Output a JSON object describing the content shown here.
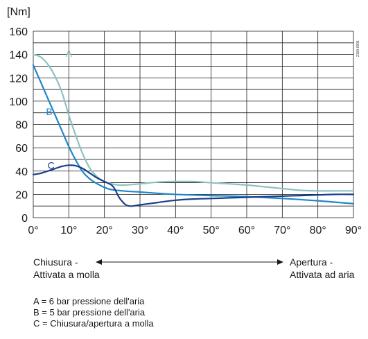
{
  "chart_data": {
    "type": "line",
    "ylabel": "[Nm]",
    "xlabel": "",
    "ylim": [
      0,
      160
    ],
    "xlim": [
      0,
      90
    ],
    "grid": true,
    "x_ticks": [
      "0°",
      "10°",
      "20°",
      "30°",
      "40°",
      "50°",
      "60°",
      "70°",
      "80°",
      "90°"
    ],
    "y_ticks": [
      "0",
      "20",
      "40",
      "60",
      "80",
      "100",
      "120",
      "140",
      "160"
    ],
    "figure_code": "2100-0001",
    "series": [
      {
        "name": "A",
        "color": "#8cc2c0",
        "points": [
          [
            0,
            140
          ],
          [
            2,
            138
          ],
          [
            4,
            132
          ],
          [
            6,
            122
          ],
          [
            8,
            108
          ],
          [
            10,
            88
          ],
          [
            12,
            70
          ],
          [
            14,
            54
          ],
          [
            16,
            42
          ],
          [
            18,
            35
          ],
          [
            20,
            31
          ],
          [
            22,
            29
          ],
          [
            24,
            28
          ],
          [
            26,
            28
          ],
          [
            30,
            29
          ],
          [
            35,
            30.5
          ],
          [
            40,
            31
          ],
          [
            45,
            31
          ],
          [
            50,
            30
          ],
          [
            55,
            29
          ],
          [
            60,
            28
          ],
          [
            65,
            26.5
          ],
          [
            70,
            25
          ],
          [
            75,
            23.5
          ],
          [
            80,
            23
          ],
          [
            85,
            23
          ],
          [
            90,
            23
          ]
        ]
      },
      {
        "name": "B",
        "color": "#1f86c9",
        "points": [
          [
            0,
            131
          ],
          [
            2,
            117
          ],
          [
            4,
            103
          ],
          [
            6,
            89
          ],
          [
            8,
            75
          ],
          [
            10,
            61
          ],
          [
            12,
            49
          ],
          [
            14,
            39
          ],
          [
            16,
            33
          ],
          [
            18,
            29
          ],
          [
            20,
            26
          ],
          [
            22,
            24
          ],
          [
            25,
            23
          ],
          [
            30,
            22
          ],
          [
            40,
            20
          ],
          [
            50,
            19
          ],
          [
            60,
            18
          ],
          [
            70,
            16.5
          ],
          [
            80,
            14.5
          ],
          [
            90,
            12
          ]
        ]
      },
      {
        "name": "C",
        "color": "#1a3f8a",
        "points": [
          [
            0,
            37
          ],
          [
            2,
            38
          ],
          [
            4,
            40
          ],
          [
            6,
            42
          ],
          [
            8,
            44
          ],
          [
            10,
            45
          ],
          [
            12,
            44.5
          ],
          [
            14,
            42
          ],
          [
            16,
            38
          ],
          [
            18,
            34
          ],
          [
            20,
            31
          ],
          [
            22,
            28
          ],
          [
            23,
            24
          ],
          [
            24,
            18
          ],
          [
            25,
            14
          ],
          [
            26,
            11
          ],
          [
            27,
            10
          ],
          [
            28,
            10
          ],
          [
            30,
            11
          ],
          [
            35,
            13
          ],
          [
            40,
            15
          ],
          [
            45,
            16
          ],
          [
            50,
            16.5
          ],
          [
            55,
            17
          ],
          [
            60,
            17.5
          ],
          [
            65,
            18
          ],
          [
            70,
            18.5
          ],
          [
            75,
            19
          ],
          [
            80,
            19.5
          ],
          [
            85,
            20
          ],
          [
            90,
            20
          ]
        ]
      }
    ]
  },
  "direction": {
    "left_line1": "Chiusura -",
    "left_line2": "Attivata a molla",
    "right_line1": "Apertura -",
    "right_line2": "Attivata ad aria"
  },
  "legend": {
    "a": "A = 6 bar pressione dell'aria",
    "b": "B = 5 bar pressione dell'aria",
    "c": "C = Chiusura/apertura a molla"
  }
}
